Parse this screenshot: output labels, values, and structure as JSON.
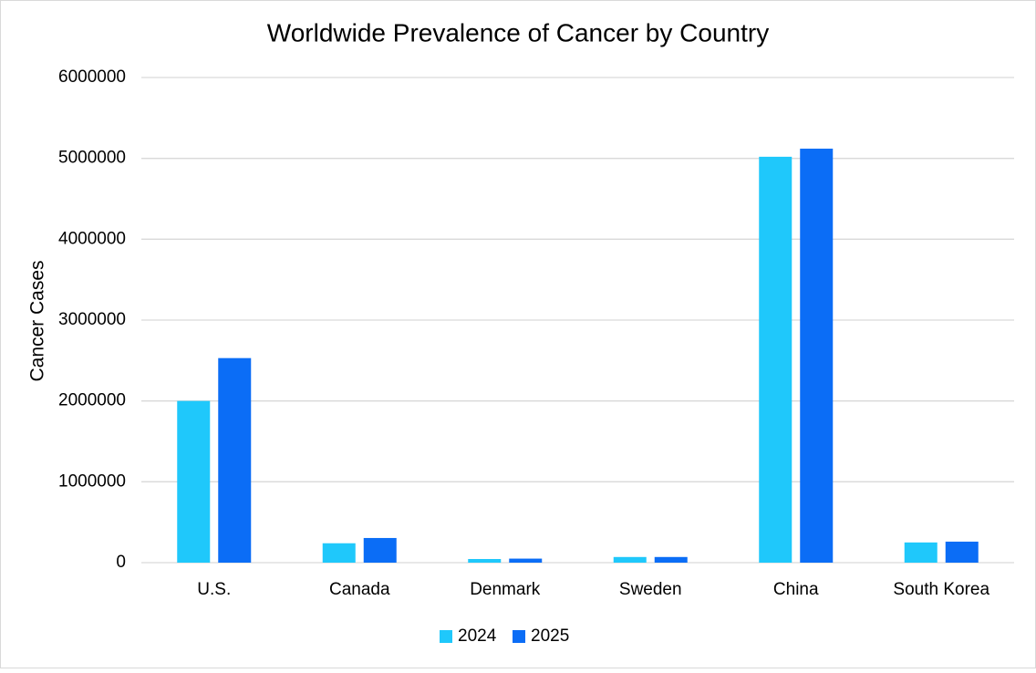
{
  "chart_data": {
    "type": "bar",
    "title": "Worldwide Prevalence of Cancer by Country",
    "y_label": "Cancer Cases",
    "categories": [
      "U.S.",
      "Canada",
      "Denmark",
      "Sweden",
      "China",
      "South Korea"
    ],
    "series": [
      {
        "name": "2024",
        "color": "#1fc8fb",
        "values": [
          2000000,
          240000,
          45000,
          70000,
          5020000,
          250000
        ]
      },
      {
        "name": "2025",
        "color": "#0b6df6",
        "values": [
          2530000,
          305000,
          50000,
          70000,
          5120000,
          260000
        ]
      }
    ],
    "ylim": [
      0,
      6000000
    ],
    "yticks": [
      0,
      1000000,
      2000000,
      3000000,
      4000000,
      5000000,
      6000000
    ],
    "grid": true,
    "legend": "bottom"
  }
}
